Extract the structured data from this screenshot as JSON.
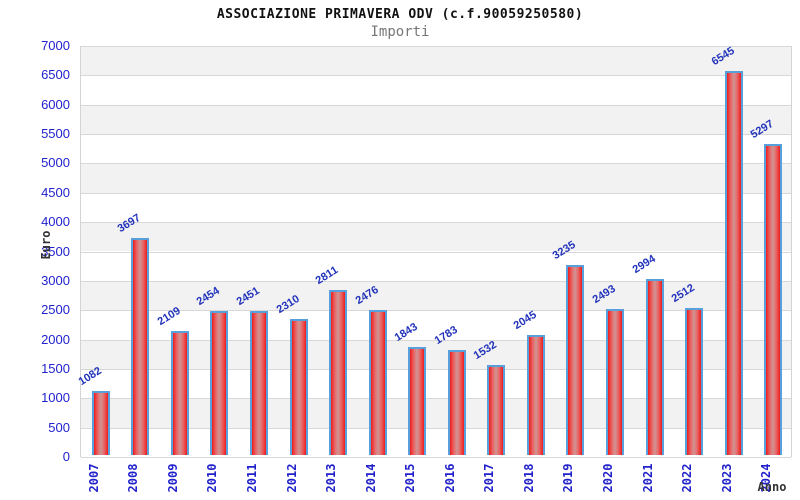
{
  "header": {
    "title": "ASSOCIAZIONE PRIMAVERA ODV (c.f.90059250580)",
    "subtitle": "Importi"
  },
  "chart_data": {
    "type": "bar",
    "title": "ASSOCIAZIONE PRIMAVERA ODV (c.f.90059250580)",
    "subtitle": "Importi",
    "xlabel": "Anno",
    "ylabel": "Euro",
    "categories": [
      "2007",
      "2008",
      "2009",
      "2010",
      "2011",
      "2012",
      "2013",
      "2014",
      "2015",
      "2016",
      "2017",
      "2018",
      "2019",
      "2020",
      "2021",
      "2022",
      "2023",
      "2024"
    ],
    "values": [
      1082,
      3697,
      2109,
      2454,
      2451,
      2310,
      2811,
      2476,
      1843,
      1783,
      1532,
      2045,
      3235,
      2493,
      2994,
      2512,
      6545,
      5297
    ],
    "ylim": [
      0,
      7000
    ],
    "ytick_step": 500,
    "ytick_labels": [
      "0",
      "500",
      "1000",
      "1500",
      "2000",
      "2500",
      "3000",
      "3500",
      "4000",
      "4500",
      "5000",
      "5500",
      "6000",
      "6500",
      "7000"
    ],
    "grid": true,
    "legend": "none",
    "colors": {
      "bar_edge_red": "#ee1c1c",
      "bar_mid_red": "#e86868",
      "bar_center": "#d09494",
      "bar_border": "#58a0dc",
      "tick_label_blue": "#2222cc",
      "value_label_blue": "#2233bb",
      "band_gray": "#f2f2f2",
      "band_white": "#ffffff",
      "grid_line": "#d8d8d8",
      "axis_title_color": "#333333",
      "title_color": "#111111",
      "subtitle_color": "#777777"
    }
  }
}
